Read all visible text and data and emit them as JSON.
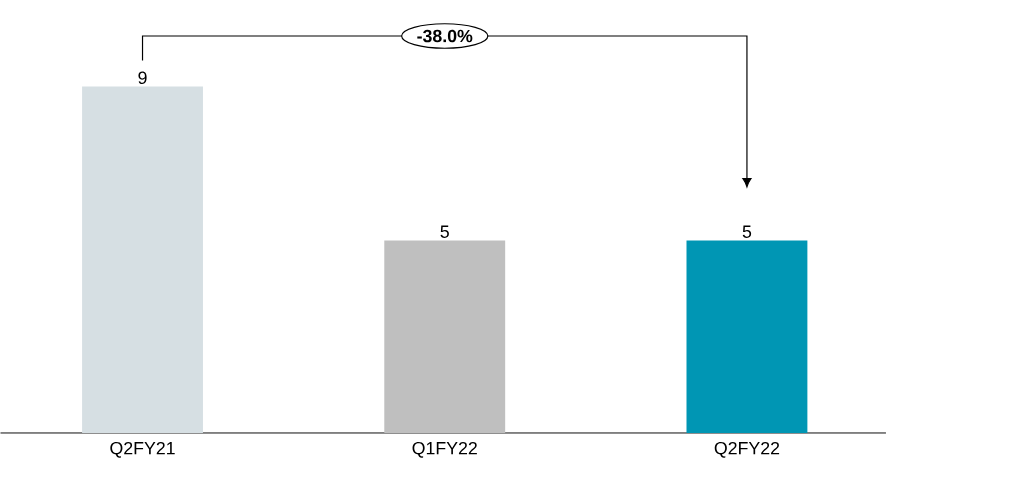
{
  "chart_data": {
    "type": "bar",
    "categories": [
      "Q2FY21",
      "Q1FY22",
      "Q2FY22"
    ],
    "values": [
      9,
      5,
      5
    ],
    "colors": [
      "#d6dfe3",
      "#bfbfbf",
      "#0096b4"
    ],
    "data_labels": true,
    "annotations": [
      "-38.0%"
    ]
  }
}
